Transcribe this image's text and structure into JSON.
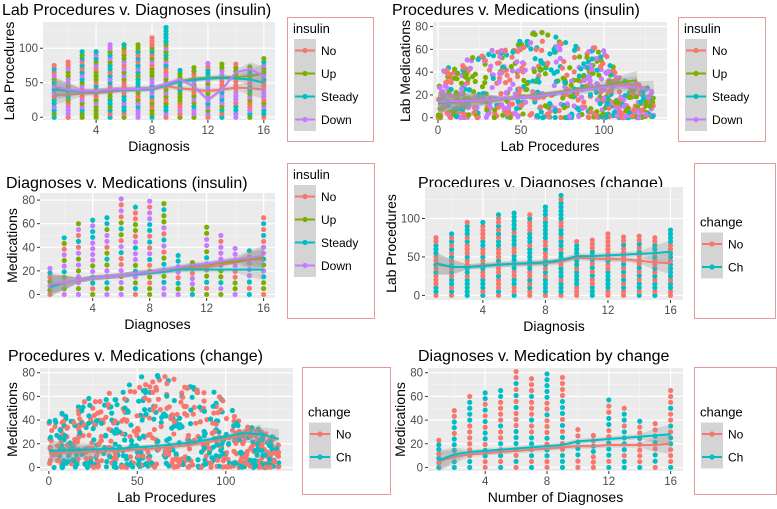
{
  "chart_data": [
    {
      "type": "scatter",
      "title": "Lab Procedures v. Diagnoses (insulin)",
      "xlabel": "Diagnosis",
      "ylabel": "Lab Procedures",
      "xlim": [
        0.2,
        16.8
      ],
      "ylim": [
        -4,
        138
      ],
      "xticks": [
        4,
        8,
        12,
        16
      ],
      "yticks": [
        0,
        50,
        100
      ],
      "grid": true,
      "legend": {
        "title": "insulin",
        "position": "right"
      },
      "series": [
        {
          "name": "No",
          "color": "#F8766D",
          "smooth": [
            32,
            33,
            34,
            35,
            37,
            39,
            40,
            41,
            45,
            42,
            40,
            38,
            40,
            43,
            42,
            40
          ]
        },
        {
          "name": "Up",
          "color": "#7CAE00",
          "smooth": [
            42,
            40,
            38,
            38,
            40,
            41,
            41,
            42,
            47,
            52,
            56,
            57,
            58,
            58,
            60,
            63
          ]
        },
        {
          "name": "Steady",
          "color": "#00BFC4",
          "smooth": [
            40,
            38,
            37,
            37,
            39,
            40,
            40,
            41,
            46,
            52,
            54,
            56,
            57,
            56,
            55,
            50
          ]
        },
        {
          "name": "Down",
          "color": "#C77CFF",
          "smooth": [
            45,
            40,
            38,
            38,
            40,
            41,
            41,
            42,
            48,
            55,
            45,
            25,
            40,
            65,
            70,
            60
          ]
        }
      ],
      "smooth_x": [
        1,
        2,
        3,
        4,
        5,
        6,
        7,
        8,
        9,
        10,
        11,
        12,
        13,
        14,
        15,
        16
      ],
      "column_max": [
        75,
        80,
        95,
        95,
        105,
        105,
        105,
        115,
        130,
        68,
        72,
        78,
        77,
        77,
        73,
        85
      ]
    },
    {
      "type": "scatter",
      "title": "Procedures v. Medications (insulin)",
      "xlabel": "Lab Procedures",
      "ylabel": "Lab Medications",
      "xlim": [
        -3,
        138
      ],
      "ylim": [
        -2,
        84
      ],
      "xticks": [
        0,
        50,
        100
      ],
      "yticks": [
        0,
        20,
        40,
        60,
        80
      ],
      "grid": true,
      "legend": {
        "title": "insulin",
        "position": "right"
      },
      "series": [
        {
          "name": "No",
          "color": "#F8766D",
          "smooth": [
            12,
            14,
            16,
            19,
            23,
            27,
            29,
            28,
            null
          ]
        },
        {
          "name": "Up",
          "color": "#7CAE00",
          "smooth": [
            14,
            16,
            17,
            20,
            24,
            28,
            31,
            33,
            null
          ]
        },
        {
          "name": "Steady",
          "color": "#00BFC4",
          "smooth": [
            13,
            15,
            17,
            19,
            23,
            27,
            28,
            null,
            null
          ]
        },
        {
          "name": "Down",
          "color": "#C77CFF",
          "smooth": [
            14,
            15,
            17,
            19,
            23,
            27,
            28,
            26,
            24
          ]
        }
      ],
      "smooth_x": [
        0,
        20,
        40,
        60,
        80,
        100,
        110,
        120,
        130
      ],
      "envelope_x": [
        0,
        20,
        40,
        55,
        70,
        90,
        100,
        110,
        120,
        130
      ],
      "envelope_max": [
        40,
        55,
        62,
        80,
        72,
        65,
        60,
        34,
        32,
        25
      ]
    },
    {
      "type": "scatter",
      "title": "Diagnoses v. Medications (insulin)",
      "xlabel": "Diagnoses",
      "ylabel": "Medications",
      "xlim": [
        0.3,
        16.8
      ],
      "ylim": [
        -3,
        86
      ],
      "xticks": [
        4,
        8,
        12,
        16
      ],
      "yticks": [
        0,
        20,
        40,
        60,
        80
      ],
      "grid": true,
      "legend": {
        "title": "insulin",
        "position": "right"
      },
      "series": [
        {
          "name": "No",
          "color": "#F8766D",
          "smooth": [
            9,
            10,
            12,
            14,
            15,
            16,
            18,
            19,
            20,
            21,
            22,
            23,
            25,
            27,
            29,
            30
          ]
        },
        {
          "name": "Up",
          "color": "#7CAE00",
          "smooth": [
            8,
            10,
            12,
            14,
            15,
            16,
            18,
            19,
            21,
            22,
            24,
            25,
            27,
            28,
            30,
            31
          ]
        },
        {
          "name": "Steady",
          "color": "#00BFC4",
          "smooth": [
            6,
            10,
            12,
            14,
            15,
            16,
            17,
            18,
            19,
            21,
            21,
            21,
            21,
            21,
            21,
            21
          ]
        },
        {
          "name": "Down",
          "color": "#C77CFF",
          "smooth": [
            9,
            10,
            12,
            14,
            15,
            16,
            18,
            19,
            21,
            23,
            25,
            26,
            28,
            30,
            31,
            33
          ]
        }
      ],
      "smooth_x": [
        1,
        2,
        3,
        4,
        5,
        6,
        7,
        8,
        9,
        10,
        11,
        12,
        13,
        14,
        15,
        16
      ],
      "column_max": [
        22,
        48,
        60,
        63,
        65,
        81,
        74,
        79,
        77,
        33,
        27,
        57,
        50,
        39,
        37,
        65
      ]
    },
    {
      "type": "scatter",
      "title": "Procedures v. Diagnoses (change)",
      "xlabel": "Diagnosis",
      "ylabel": "Lab Procedures",
      "xlim": [
        0.3,
        16.8
      ],
      "ylim": [
        -6,
        141
      ],
      "xticks": [
        4,
        8,
        12,
        16
      ],
      "yticks": [
        0,
        50,
        100
      ],
      "grid": true,
      "legend": {
        "title": "change",
        "position": "right"
      },
      "series": [
        {
          "name": "No",
          "color": "#F8766D",
          "smooth": [
            40,
            37,
            37,
            39,
            40,
            41,
            41,
            42,
            44,
            49,
            48,
            47,
            47,
            45,
            43,
            42
          ]
        },
        {
          "name": "Ch",
          "color": "#00BFC4",
          "smooth": [
            42,
            37,
            37,
            38,
            40,
            41,
            42,
            43,
            46,
            51,
            51,
            52,
            53,
            54,
            55,
            57
          ]
        }
      ],
      "smooth_x": [
        1,
        2,
        3,
        4,
        5,
        6,
        7,
        8,
        9,
        10,
        11,
        12,
        13,
        14,
        15,
        16
      ],
      "column_max": [
        75,
        80,
        95,
        95,
        105,
        107,
        105,
        115,
        130,
        70,
        72,
        80,
        76,
        77,
        75,
        85
      ]
    },
    {
      "type": "scatter",
      "title": "Procedures v. Medications (change)",
      "xlabel": "Lab Procedures",
      "ylabel": "Medications",
      "xlim": [
        -5,
        138
      ],
      "ylim": [
        -3,
        84
      ],
      "xticks": [
        0,
        50,
        100
      ],
      "yticks": [
        0,
        20,
        40,
        60,
        80
      ],
      "grid": true,
      "legend": {
        "title": "change",
        "position": "right"
      },
      "series": [
        {
          "name": "No",
          "color": "#F8766D",
          "smooth": [
            12,
            13,
            14,
            16,
            19,
            24,
            27,
            28,
            null
          ]
        },
        {
          "name": "Ch",
          "color": "#00BFC4",
          "smooth": [
            14,
            15,
            16,
            18,
            21,
            26,
            29,
            28,
            24
          ]
        }
      ],
      "smooth_x": [
        0,
        20,
        40,
        60,
        80,
        100,
        110,
        120,
        130
      ],
      "envelope_x": [
        0,
        20,
        40,
        55,
        70,
        90,
        100,
        110,
        120,
        130
      ],
      "envelope_max": [
        40,
        58,
        65,
        82,
        75,
        68,
        62,
        35,
        32,
        25
      ]
    },
    {
      "type": "scatter",
      "title": "Diagnoses v. Medication by change",
      "xlabel": "Number of Diagnoses",
      "ylabel": "Medications",
      "xlim": [
        0.3,
        16.8
      ],
      "ylim": [
        -3,
        84
      ],
      "xticks": [
        4,
        8,
        12,
        16
      ],
      "yticks": [
        0,
        20,
        40,
        60,
        80
      ],
      "grid": true,
      "legend": {
        "title": "change",
        "position": "right"
      },
      "series": [
        {
          "name": "No",
          "color": "#F8766D",
          "smooth": [
            5,
            9,
            11,
            12,
            13,
            14,
            15,
            16,
            17,
            18,
            18,
            19,
            19,
            19,
            19,
            20
          ]
        },
        {
          "name": "Ch",
          "color": "#00BFC4",
          "smooth": [
            6,
            11,
            13,
            14,
            15,
            16,
            17,
            18,
            19,
            22,
            23,
            24,
            25,
            26,
            27,
            28
          ]
        }
      ],
      "smooth_x": [
        1,
        2,
        3,
        4,
        5,
        6,
        7,
        8,
        9,
        10,
        11,
        12,
        13,
        14,
        15,
        16
      ],
      "column_max": [
        23,
        48,
        60,
        63,
        65,
        81,
        75,
        79,
        76,
        32,
        27,
        57,
        50,
        39,
        37,
        65
      ]
    }
  ]
}
